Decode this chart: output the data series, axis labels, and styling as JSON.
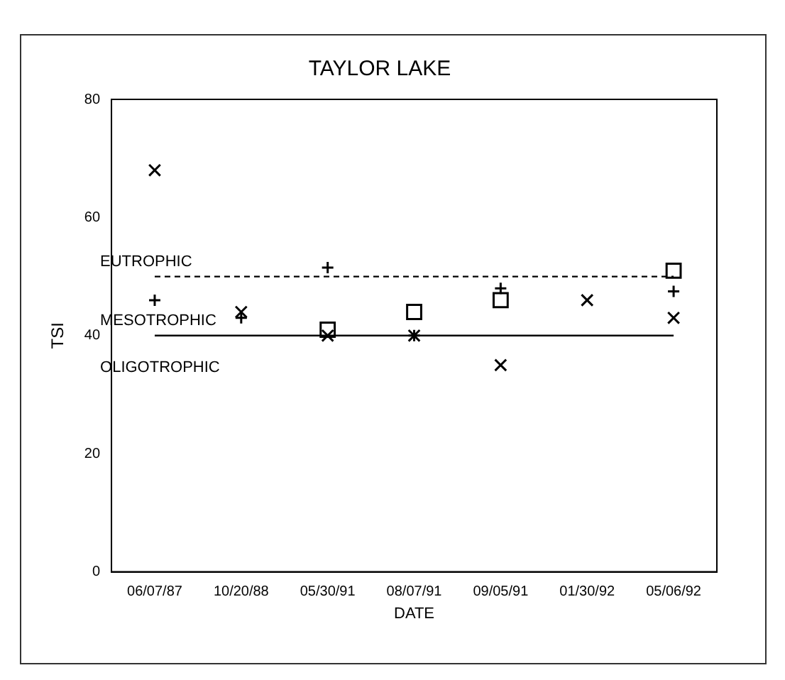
{
  "chart_data": {
    "type": "scatter",
    "title": "TAYLOR LAKE",
    "xlabel": "DATE",
    "ylabel": "TSI",
    "categories": [
      "06/07/87",
      "10/20/88",
      "05/30/91",
      "08/07/91",
      "09/05/91",
      "01/30/92",
      "05/06/92"
    ],
    "series": [
      {
        "color": "#000000",
        "marker": "cross",
        "values": [
          46,
          43,
          51.5,
          40,
          48,
          null,
          47.5
        ]
      },
      {
        "color": "#000000",
        "marker": "cross",
        "values": [
          68,
          44,
          40,
          40,
          35,
          46,
          43
        ]
      },
      {
        "color": "#000000",
        "marker": "square",
        "values": [
          null,
          null,
          41,
          44,
          46,
          null,
          51
        ]
      }
    ],
    "ylim": [
      0,
      80
    ],
    "yticks": [
      0,
      20,
      40,
      60,
      80
    ],
    "grid": false,
    "legend": false,
    "ref_lines": [
      {
        "axis": "y",
        "value": 50,
        "label": "EUTROPHIC",
        "color": "#000000",
        "line_style": "dashed"
      },
      {
        "axis": "y",
        "value": 40,
        "label": "MESOTROPHIC",
        "color": "#000000",
        "line_style": "solid"
      }
    ],
    "annotations": [
      "OLIGOTROPHIC"
    ]
  }
}
